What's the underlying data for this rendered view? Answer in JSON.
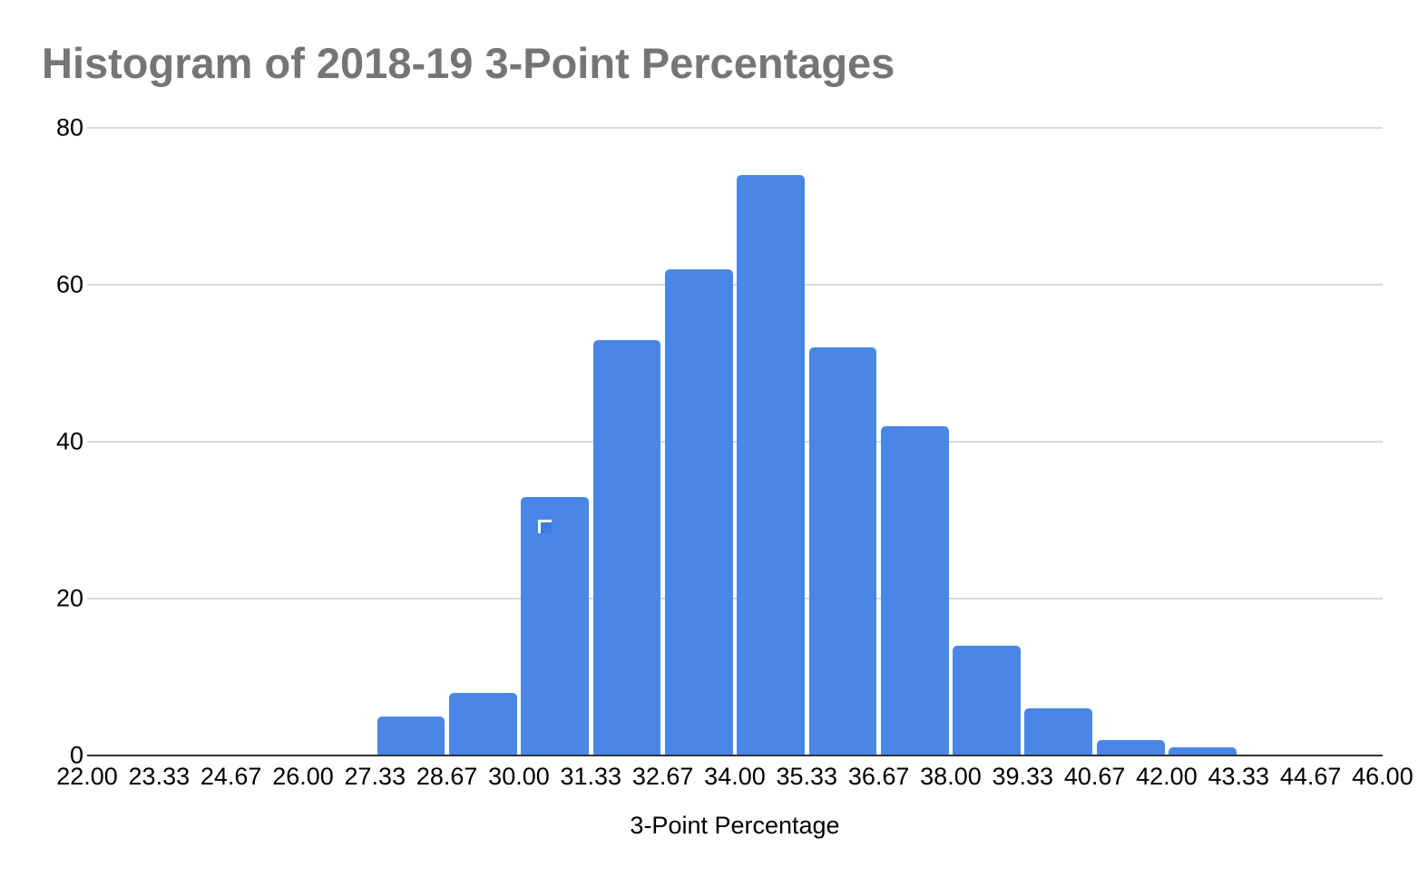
{
  "chart_data": {
    "type": "bar",
    "subtype": "histogram",
    "title": "Histogram of 2018-19 3-Point Percentages",
    "xlabel": "3-Point Percentage",
    "ylabel": "",
    "xticks": [
      "22.00",
      "23.33",
      "24.67",
      "26.00",
      "27.33",
      "28.67",
      "30.00",
      "31.33",
      "32.67",
      "34.00",
      "35.33",
      "36.67",
      "38.00",
      "39.33",
      "40.67",
      "42.00",
      "43.33",
      "44.67",
      "46.00"
    ],
    "yticks": [
      0,
      20,
      40,
      60,
      80
    ],
    "xlim": [
      22.0,
      46.0
    ],
    "ylim": [
      0,
      80
    ],
    "grid": true,
    "legend": false,
    "bins": [
      {
        "from": "27.33",
        "to": "28.67",
        "count": 5
      },
      {
        "from": "28.67",
        "to": "30.00",
        "count": 8
      },
      {
        "from": "30.00",
        "to": "31.33",
        "count": 33
      },
      {
        "from": "31.33",
        "to": "32.67",
        "count": 53
      },
      {
        "from": "32.67",
        "to": "34.00",
        "count": 62
      },
      {
        "from": "34.00",
        "to": "35.33",
        "count": 74
      },
      {
        "from": "35.33",
        "to": "36.67",
        "count": 52
      },
      {
        "from": "36.67",
        "to": "38.00",
        "count": 42
      },
      {
        "from": "38.00",
        "to": "39.33",
        "count": 14
      },
      {
        "from": "39.33",
        "to": "40.67",
        "count": 6
      },
      {
        "from": "40.67",
        "to": "42.00",
        "count": 2
      },
      {
        "from": "42.00",
        "to": "43.33",
        "count": 1
      }
    ]
  },
  "colors": {
    "bar": "#4a86e8",
    "title_text": "#757575",
    "axis_text": "#000000",
    "gridline": "#dadada",
    "baseline": "#333333",
    "artifact_fill": "#3c7ce0",
    "artifact_stroke": "#ffffff"
  }
}
